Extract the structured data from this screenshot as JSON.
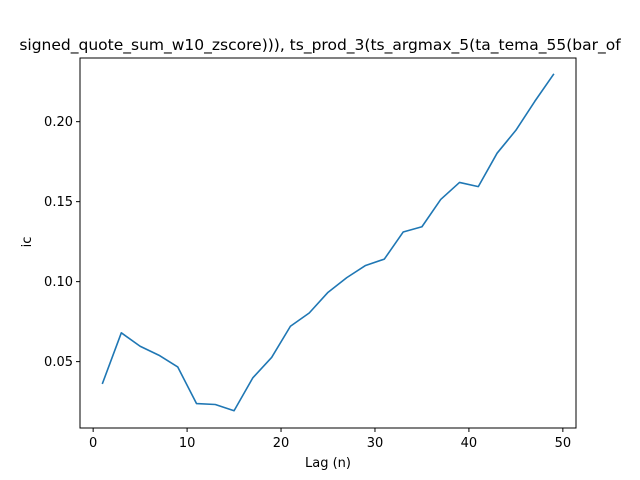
{
  "chart_data": {
    "type": "line",
    "title": "signed_quote_sum_w10_zscore))), ts_prod_3(ts_argmax_5(ta_tema_55(bar_of",
    "xlabel": "Lag (n)",
    "ylabel": "ic",
    "xlim": [
      -1.4,
      51.4
    ],
    "ylim": [
      0.0085,
      0.2398
    ],
    "x_ticks": [
      0,
      10,
      20,
      30,
      40,
      50
    ],
    "y_ticks": [
      0.05,
      0.1,
      0.15,
      0.2
    ],
    "grid": false,
    "series": [
      {
        "color": "#1f77b4",
        "x": [
          1,
          3,
          5,
          7,
          9,
          11,
          13,
          15,
          17,
          19,
          21,
          23,
          25,
          27,
          29,
          31,
          33,
          35,
          37,
          39,
          41,
          43,
          45,
          47,
          49
        ],
        "y": [
          0.0365,
          0.068,
          0.0596,
          0.054,
          0.0467,
          0.0238,
          0.0232,
          0.0193,
          0.0399,
          0.0526,
          0.0721,
          0.0804,
          0.0933,
          0.1025,
          0.1101,
          0.1141,
          0.131,
          0.1343,
          0.1514,
          0.162,
          0.1594,
          0.1803,
          0.1946,
          0.2126,
          0.2295
        ]
      }
    ]
  }
}
